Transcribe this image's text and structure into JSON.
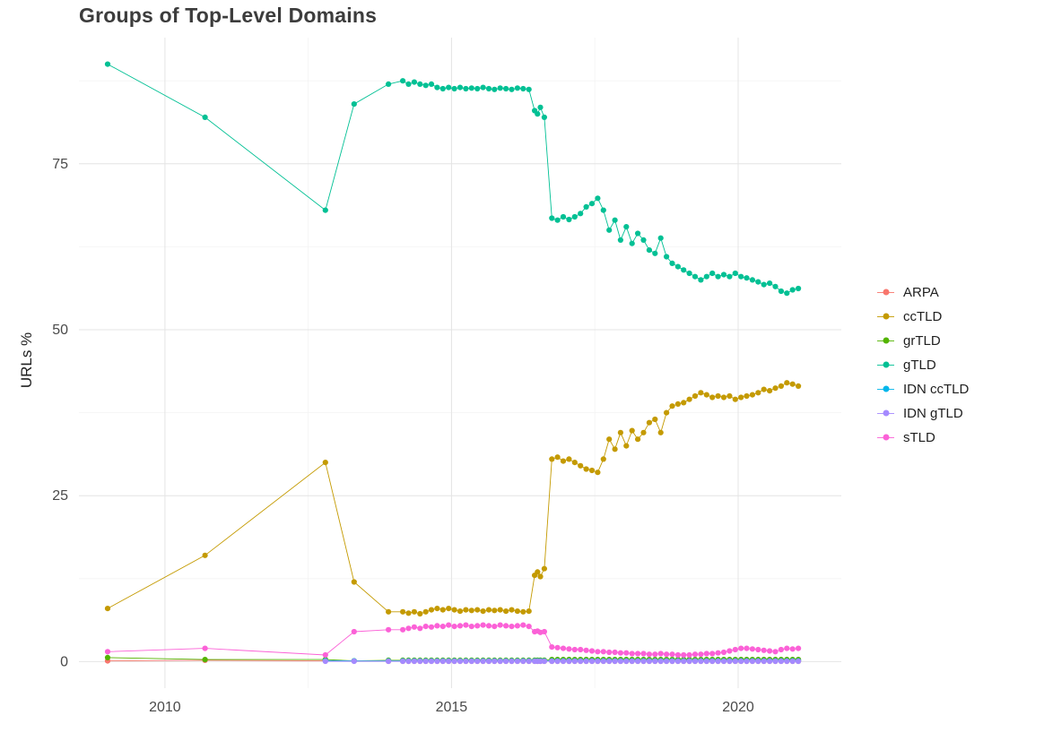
{
  "chart_data": {
    "type": "line",
    "marker": "point",
    "title": "Groups of Top-Level Domains",
    "xlabel": "",
    "ylabel": "URLs %",
    "grid": true,
    "legend_position": "right",
    "xlim": [
      2008.5,
      2021.8
    ],
    "ylim": [
      -4,
      94
    ],
    "x_ticks": [
      2010,
      2015,
      2020
    ],
    "y_ticks": [
      0,
      25,
      50,
      75
    ],
    "x_minor_ticks": [
      2012.5,
      2017.5
    ],
    "y_minor_ticks": [
      12.5,
      37.5,
      62.5,
      87.5
    ],
    "colors": {
      "background": "#ffffff",
      "grid_major": "#e4e4e4",
      "grid_minor": "#f3f3f3",
      "tick_text": "#4a4a4a"
    },
    "x": [
      2009.0,
      2010.7,
      2012.8,
      2013.3,
      2013.9,
      2014.15,
      2014.25,
      2014.35,
      2014.45,
      2014.55,
      2014.65,
      2014.75,
      2014.85,
      2014.95,
      2015.05,
      2015.15,
      2015.25,
      2015.35,
      2015.45,
      2015.55,
      2015.65,
      2015.75,
      2015.85,
      2015.95,
      2016.05,
      2016.15,
      2016.25,
      2016.35,
      2016.45,
      2016.5,
      2016.55,
      2016.62,
      2016.75,
      2016.85,
      2016.95,
      2017.05,
      2017.15,
      2017.25,
      2017.35,
      2017.45,
      2017.55,
      2017.65,
      2017.75,
      2017.85,
      2017.95,
      2018.05,
      2018.15,
      2018.25,
      2018.35,
      2018.45,
      2018.55,
      2018.65,
      2018.75,
      2018.85,
      2018.95,
      2019.05,
      2019.15,
      2019.25,
      2019.35,
      2019.45,
      2019.55,
      2019.65,
      2019.75,
      2019.85,
      2019.95,
      2020.05,
      2020.15,
      2020.25,
      2020.35,
      2020.45,
      2020.55,
      2020.65,
      2020.75,
      2020.85,
      2020.95,
      2021.05
    ],
    "series": [
      {
        "name": "ARPA",
        "color": "#F8766D",
        "values": [
          0.1,
          0.2,
          0.1,
          0.1,
          0.05,
          0.05,
          0.05,
          0.05,
          0.05,
          0.05,
          0.05,
          0.05,
          0.05,
          0.05,
          0.05,
          0.05,
          0.05,
          0.05,
          0.05,
          0.05,
          0.05,
          0.05,
          0.05,
          0.05,
          0.05,
          0.05,
          0.05,
          0.05,
          0.05,
          0.05,
          0.05,
          0.05,
          0.05,
          0.05,
          0.05,
          0.05,
          0.05,
          0.05,
          0.05,
          0.05,
          0.05,
          0.05,
          0.05,
          0.05,
          0.05,
          0.05,
          0.05,
          0.05,
          0.05,
          0.05,
          0.05,
          0.05,
          0.05,
          0.05,
          0.05,
          0.05,
          0.05,
          0.05,
          0.05,
          0.05,
          0.05,
          0.05,
          0.05,
          0.05,
          0.05,
          0.05,
          0.05,
          0.05,
          0.05,
          0.05,
          0.05,
          0.05,
          0.05,
          0.05,
          0.05,
          0.05
        ]
      },
      {
        "name": "ccTLD",
        "color": "#C49A00",
        "values": [
          8,
          16,
          30,
          12,
          7.5,
          7.5,
          7.3,
          7.5,
          7.2,
          7.5,
          7.8,
          8,
          7.8,
          8,
          7.8,
          7.6,
          7.8,
          7.7,
          7.8,
          7.6,
          7.8,
          7.7,
          7.8,
          7.6,
          7.8,
          7.6,
          7.5,
          7.6,
          13,
          13.5,
          12.8,
          14,
          30.5,
          30.8,
          30.2,
          30.5,
          30,
          29.5,
          29,
          28.8,
          28.5,
          30.5,
          33.5,
          32,
          34.5,
          32.5,
          34.8,
          33.5,
          34.5,
          36,
          36.5,
          34.5,
          37.5,
          38.5,
          38.8,
          39,
          39.5,
          40,
          40.5,
          40.2,
          39.8,
          40,
          39.8,
          40,
          39.5,
          39.8,
          40,
          40.2,
          40.5,
          41,
          40.8,
          41.2,
          41.5,
          42,
          41.8,
          41.5
        ]
      },
      {
        "name": "grTLD",
        "color": "#53B400",
        "values": [
          0.6,
          0.3,
          0.3,
          0.1,
          0.2,
          0.2,
          0.2,
          0.2,
          0.2,
          0.2,
          0.2,
          0.2,
          0.2,
          0.2,
          0.2,
          0.2,
          0.2,
          0.2,
          0.2,
          0.2,
          0.2,
          0.2,
          0.2,
          0.2,
          0.2,
          0.2,
          0.2,
          0.2,
          0.2,
          0.2,
          0.2,
          0.2,
          0.3,
          0.3,
          0.3,
          0.3,
          0.3,
          0.3,
          0.3,
          0.3,
          0.3,
          0.3,
          0.3,
          0.3,
          0.3,
          0.3,
          0.3,
          0.3,
          0.3,
          0.3,
          0.3,
          0.3,
          0.3,
          0.3,
          0.3,
          0.3,
          0.3,
          0.3,
          0.3,
          0.3,
          0.3,
          0.3,
          0.3,
          0.3,
          0.3,
          0.3,
          0.3,
          0.3,
          0.3,
          0.3,
          0.3,
          0.3,
          0.3,
          0.3,
          0.3,
          0.3
        ]
      },
      {
        "name": "gTLD",
        "color": "#00C094",
        "values": [
          90,
          82,
          68,
          84,
          87,
          87.5,
          87,
          87.3,
          87,
          86.8,
          87,
          86.5,
          86.3,
          86.5,
          86.3,
          86.5,
          86.3,
          86.4,
          86.3,
          86.5,
          86.3,
          86.2,
          86.4,
          86.3,
          86.2,
          86.4,
          86.3,
          86.2,
          83,
          82.5,
          83.5,
          82,
          66.8,
          66.5,
          67,
          66.6,
          67,
          67.5,
          68.5,
          69,
          69.8,
          68,
          65,
          66.5,
          63.5,
          65.5,
          63,
          64.5,
          63.5,
          62,
          61.5,
          63.8,
          61,
          60,
          59.5,
          59,
          58.5,
          58,
          57.5,
          58,
          58.5,
          58,
          58.3,
          58,
          58.5,
          58,
          57.8,
          57.5,
          57.2,
          56.8,
          57,
          56.5,
          55.8,
          55.5,
          56,
          56.2
        ]
      },
      {
        "name": "IDN ccTLD",
        "color": "#00B6EB",
        "values": [
          null,
          null,
          0.15,
          0.1,
          0.1,
          0.1,
          0.1,
          0.1,
          0.1,
          0.1,
          0.1,
          0.1,
          0.1,
          0.1,
          0.1,
          0.1,
          0.1,
          0.1,
          0.1,
          0.1,
          0.1,
          0.1,
          0.1,
          0.1,
          0.1,
          0.1,
          0.1,
          0.1,
          0.1,
          0.1,
          0.1,
          0.1,
          0.1,
          0.1,
          0.1,
          0.1,
          0.1,
          0.1,
          0.1,
          0.1,
          0.1,
          0.1,
          0.1,
          0.1,
          0.1,
          0.1,
          0.1,
          0.1,
          0.1,
          0.1,
          0.1,
          0.1,
          0.1,
          0.1,
          0.1,
          0.1,
          0.1,
          0.1,
          0.1,
          0.1,
          0.1,
          0.1,
          0.1,
          0.1,
          0.1,
          0.1,
          0.1,
          0.1,
          0.1,
          0.1,
          0.1,
          0.1,
          0.1,
          0.1,
          0.1,
          0.1
        ]
      },
      {
        "name": "IDN gTLD",
        "color": "#A58AFF",
        "values": [
          null,
          null,
          0.05,
          0.05,
          0.05,
          0.05,
          0.05,
          0.05,
          0.05,
          0.05,
          0.05,
          0.05,
          0.05,
          0.05,
          0.05,
          0.05,
          0.05,
          0.05,
          0.05,
          0.05,
          0.05,
          0.05,
          0.05,
          0.05,
          0.05,
          0.05,
          0.05,
          0.05,
          0.05,
          0.05,
          0.05,
          0.05,
          0.05,
          0.05,
          0.05,
          0.05,
          0.05,
          0.05,
          0.05,
          0.05,
          0.05,
          0.05,
          0.05,
          0.05,
          0.05,
          0.05,
          0.05,
          0.05,
          0.05,
          0.05,
          0.05,
          0.05,
          0.05,
          0.05,
          0.05,
          0.05,
          0.05,
          0.05,
          0.05,
          0.05,
          0.05,
          0.05,
          0.05,
          0.05,
          0.05,
          0.05,
          0.05,
          0.05,
          0.05,
          0.05,
          0.05,
          0.05,
          0.05,
          0.05,
          0.05,
          0.05
        ]
      },
      {
        "name": "sTLD",
        "color": "#FB61D7",
        "values": [
          1.5,
          2,
          1,
          4.5,
          4.8,
          4.8,
          5,
          5.2,
          5,
          5.3,
          5.2,
          5.4,
          5.3,
          5.5,
          5.3,
          5.4,
          5.5,
          5.3,
          5.4,
          5.5,
          5.4,
          5.3,
          5.5,
          5.4,
          5.3,
          5.4,
          5.5,
          5.3,
          4.5,
          4.6,
          4.4,
          4.5,
          2.2,
          2.1,
          2,
          1.9,
          1.8,
          1.8,
          1.7,
          1.6,
          1.5,
          1.5,
          1.4,
          1.4,
          1.3,
          1.3,
          1.2,
          1.2,
          1.2,
          1.1,
          1.1,
          1.2,
          1.1,
          1.1,
          1,
          1,
          1,
          1.1,
          1.1,
          1.2,
          1.2,
          1.3,
          1.4,
          1.6,
          1.8,
          2,
          2,
          1.9,
          1.8,
          1.7,
          1.6,
          1.5,
          1.8,
          2,
          1.9,
          2
        ]
      }
    ]
  }
}
